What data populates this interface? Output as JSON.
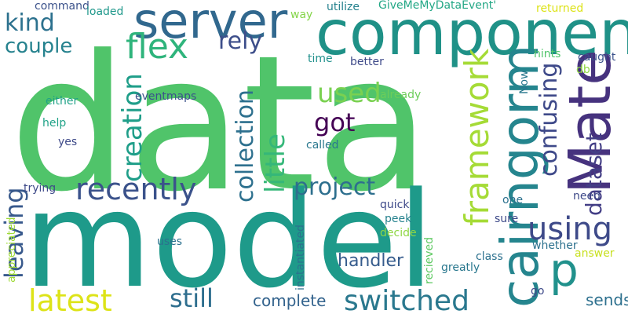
{
  "words": [
    {
      "text": "data",
      "color": "#50c46a",
      "rot": false
    },
    {
      "text": "model",
      "color": "#1e9a8a",
      "rot": false
    },
    {
      "text": "component",
      "color": "#1f9187",
      "rot": false
    },
    {
      "text": "server",
      "color": "#31688e",
      "rot": false
    },
    {
      "text": "Mate",
      "color": "#46327e",
      "rot": true
    },
    {
      "text": "cairngorm",
      "color": "#25858e",
      "rot": true
    },
    {
      "text": "framework",
      "color": "#a5db36",
      "rot": true
    },
    {
      "text": "p",
      "color": "#21918c",
      "rot": false
    },
    {
      "text": "latest",
      "color": "#dde318",
      "rot": false
    },
    {
      "text": "switched",
      "color": "#2a788e",
      "rot": false
    },
    {
      "text": "recently",
      "color": "#3b528b",
      "rot": false
    },
    {
      "text": "using",
      "color": "#3e4a89",
      "rot": false
    },
    {
      "text": "project",
      "color": "#2e6f8e",
      "rot": false
    },
    {
      "text": "flex",
      "color": "#2fb47c",
      "rot": false
    },
    {
      "text": "kind",
      "color": "#2c718e",
      "rot": false
    },
    {
      "text": "couple",
      "color": "#26828e",
      "rot": false
    },
    {
      "text": "rely",
      "color": "#3d4e8a",
      "rot": false
    },
    {
      "text": "used",
      "color": "#7ad151",
      "rot": false
    },
    {
      "text": "got",
      "color": "#440154",
      "rot": false
    },
    {
      "text": "creation",
      "color": "#1f9e89",
      "rot": true
    },
    {
      "text": "collection",
      "color": "#2d708e",
      "rot": true
    },
    {
      "text": "little",
      "color": "#35b779",
      "rot": true
    },
    {
      "text": "confusing",
      "color": "#3e4989",
      "rot": true
    },
    {
      "text": "dataset",
      "color": "#433e85",
      "rot": true
    },
    {
      "text": "leaving",
      "color": "#38598c",
      "rot": true
    },
    {
      "text": "still",
      "color": "#2e6e8e",
      "rot": false
    },
    {
      "text": "complete",
      "color": "#33638d",
      "rot": false
    },
    {
      "text": "handler",
      "color": "#365c8d",
      "rot": false
    },
    {
      "text": "sends",
      "color": "#2d708e",
      "rot": false
    },
    {
      "text": "command",
      "color": "#3b528b",
      "rot": false
    },
    {
      "text": "loaded",
      "color": "#1f988b",
      "rot": false
    },
    {
      "text": "way",
      "color": "#85d54a",
      "rot": false
    },
    {
      "text": "utilize",
      "color": "#26828e",
      "rot": false
    },
    {
      "text": "GiveMeMyDataEvent'",
      "color": "#22a785",
      "rot": false
    },
    {
      "text": "returned",
      "color": "#dde318",
      "rot": false
    },
    {
      "text": "time",
      "color": "#21918c",
      "rot": false
    },
    {
      "text": "better",
      "color": "#3e4a89",
      "rot": false
    },
    {
      "text": "Now",
      "color": "#2a788e",
      "rot": true
    },
    {
      "text": "hints",
      "color": "#50c46a",
      "rot": false
    },
    {
      "text": "db",
      "color": "#8fd744",
      "rot": false
    },
    {
      "text": "caught",
      "color": "#3b528b",
      "rot": false
    },
    {
      "text": "either",
      "color": "#1fa287",
      "rot": false
    },
    {
      "text": "eventmaps",
      "color": "#3b528b",
      "rot": false
    },
    {
      "text": "already",
      "color": "#6ccd5a",
      "rot": false
    },
    {
      "text": "help",
      "color": "#1fa287",
      "rot": false
    },
    {
      "text": "yes",
      "color": "#3e4a89",
      "rot": false
    },
    {
      "text": "called",
      "color": "#2a788e",
      "rot": false
    },
    {
      "text": "trying",
      "color": "#3e4a89",
      "rot": false
    },
    {
      "text": "quick",
      "color": "#3e4a89",
      "rot": false
    },
    {
      "text": "peek",
      "color": "#26828e",
      "rot": false
    },
    {
      "text": "decide",
      "color": "#8fd744",
      "rot": false
    },
    {
      "text": "uses",
      "color": "#2c718e",
      "rot": false
    },
    {
      "text": "appreciated",
      "color": "#a0da39",
      "rot": true
    },
    {
      "text": "instantiated",
      "color": "#2c718e",
      "rot": true
    },
    {
      "text": "recieved",
      "color": "#5ec962",
      "rot": true
    },
    {
      "text": "one",
      "color": "#2c718e",
      "rot": false
    },
    {
      "text": "sure",
      "color": "#3e4a89",
      "rot": false
    },
    {
      "text": "class",
      "color": "#2c718e",
      "rot": false
    },
    {
      "text": "greatly",
      "color": "#2a788e",
      "rot": false
    },
    {
      "text": "whether",
      "color": "#2c718e",
      "rot": false
    },
    {
      "text": "answer",
      "color": "#c8e020",
      "rot": false
    },
    {
      "text": "need",
      "color": "#3e4a89",
      "rot": false
    },
    {
      "text": "go",
      "color": "#3e4a89",
      "rot": false
    }
  ]
}
